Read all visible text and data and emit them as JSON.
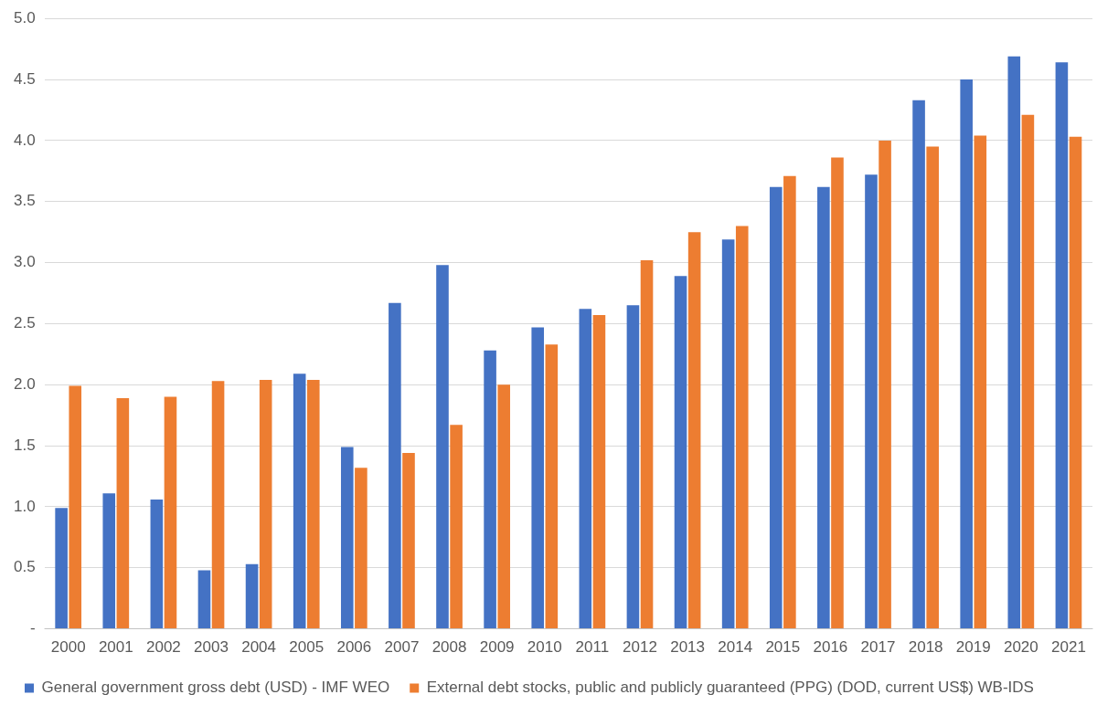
{
  "chart_data": {
    "type": "bar",
    "categories": [
      "2000",
      "2001",
      "2002",
      "2003",
      "2004",
      "2005",
      "2006",
      "2007",
      "2008",
      "2009",
      "2010",
      "2011",
      "2012",
      "2013",
      "2014",
      "2015",
      "2016",
      "2017",
      "2018",
      "2019",
      "2020",
      "2021"
    ],
    "series": [
      {
        "name": "General government gross debt (USD) - IMF WEO",
        "color": "#4472c4",
        "values": [
          0.99,
          1.11,
          1.06,
          0.48,
          0.53,
          2.09,
          1.49,
          2.67,
          2.98,
          2.28,
          2.47,
          2.62,
          2.65,
          2.89,
          3.19,
          3.62,
          3.62,
          3.72,
          4.33,
          4.5,
          4.69,
          4.64
        ]
      },
      {
        "name": "External debt stocks, public and publicly guaranteed (PPG) (DOD, current US$) WB-IDS",
        "color": "#ed7d31",
        "values": [
          1.99,
          1.89,
          1.9,
          2.03,
          2.04,
          2.04,
          1.32,
          1.44,
          1.67,
          2.0,
          2.33,
          2.57,
          3.02,
          3.25,
          3.3,
          3.71,
          3.86,
          4.0,
          3.95,
          4.04,
          4.21,
          4.03
        ]
      }
    ],
    "ylim": [
      0,
      5
    ],
    "yticks": [
      {
        "value": 0,
        "label": "-"
      },
      {
        "value": 0.5,
        "label": "0.5"
      },
      {
        "value": 1,
        "label": "1.0"
      },
      {
        "value": 1.5,
        "label": "1.5"
      },
      {
        "value": 2,
        "label": "2.0"
      },
      {
        "value": 2.5,
        "label": "2.5"
      },
      {
        "value": 3,
        "label": "3.0"
      },
      {
        "value": 3.5,
        "label": "3.5"
      },
      {
        "value": 4,
        "label": "4.0"
      },
      {
        "value": 4.5,
        "label": "4.5"
      },
      {
        "value": 5,
        "label": "5.0"
      }
    ],
    "grid": "y",
    "legend": "bottom"
  }
}
